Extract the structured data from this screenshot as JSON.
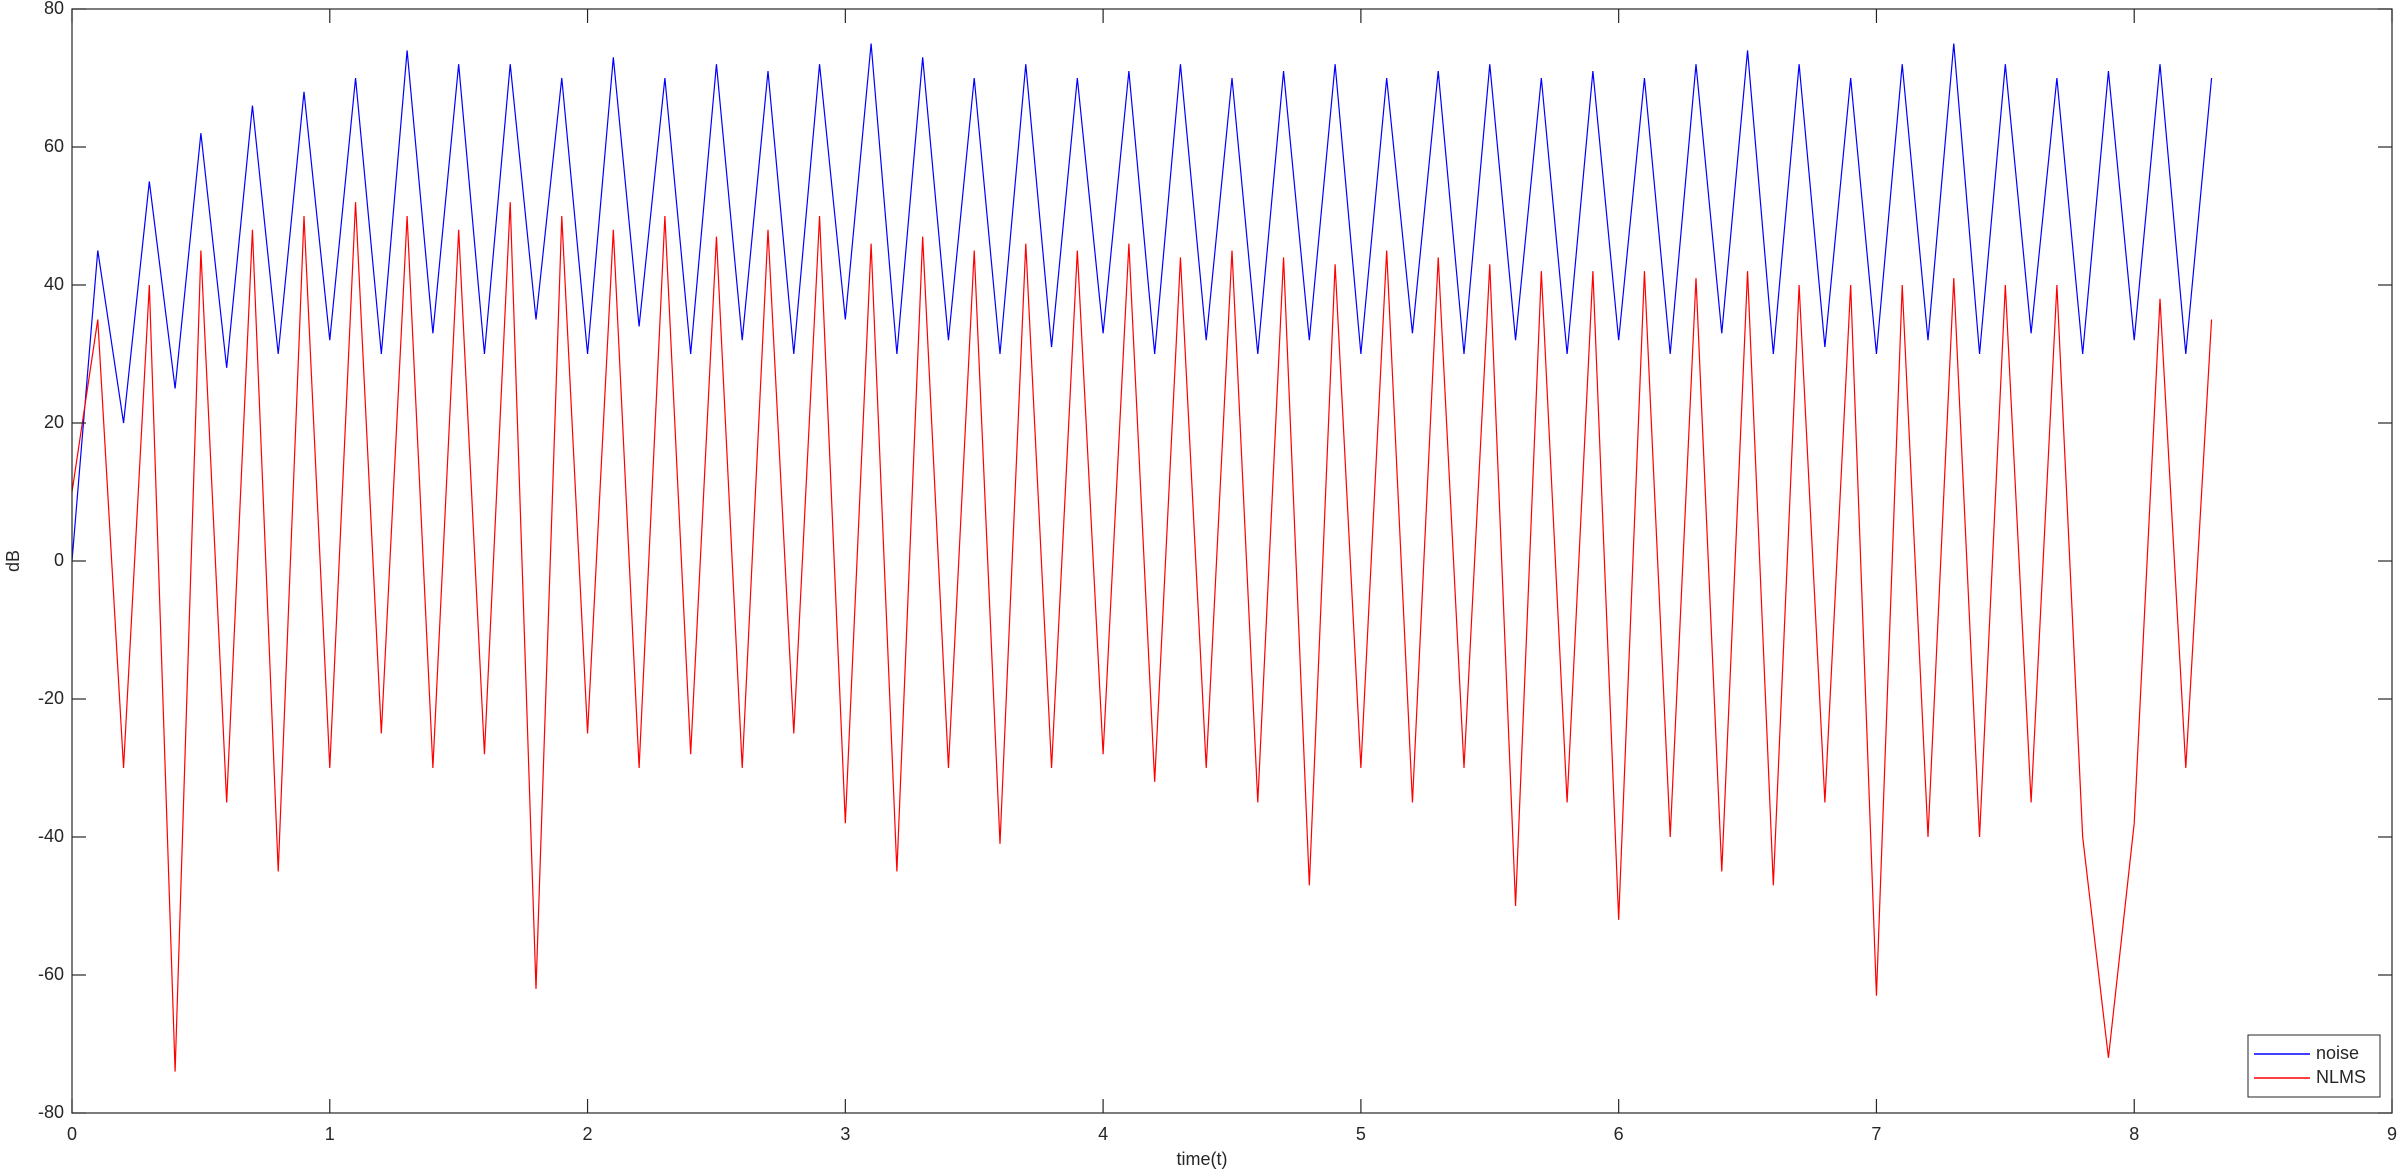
{
  "chart_data": {
    "type": "line",
    "xlabel": "time(t)",
    "ylabel": "dB",
    "x": [
      0,
      0.1,
      0.2,
      0.3,
      0.4,
      0.5,
      0.6,
      0.7,
      0.8,
      0.9,
      1,
      1.1,
      1.2,
      1.3,
      1.4,
      1.5,
      1.6,
      1.7,
      1.8,
      1.9,
      2,
      2.1,
      2.2,
      2.3,
      2.4,
      2.5,
      2.6,
      2.7,
      2.8,
      2.9,
      3,
      3.1,
      3.2,
      3.3,
      3.4,
      3.5,
      3.6,
      3.7,
      3.8,
      3.9,
      4,
      4.1,
      4.2,
      4.3,
      4.4,
      4.5,
      4.6,
      4.7,
      4.8,
      4.9,
      5,
      5.1,
      5.2,
      5.3,
      5.4,
      5.5,
      5.6,
      5.7,
      5.8,
      5.9,
      6,
      6.1,
      6.2,
      6.3,
      6.4,
      6.5,
      6.6,
      6.7,
      6.8,
      6.9,
      7,
      7.1,
      7.2,
      7.3,
      7.4,
      7.5,
      7.6,
      7.7,
      7.8,
      7.9,
      8,
      8.1,
      8.2,
      8.3
    ],
    "series": [
      {
        "name": "noise",
        "color": "#0000ff",
        "values": [
          0,
          45,
          20,
          55,
          25,
          62,
          28,
          66,
          30,
          68,
          32,
          70,
          30,
          74,
          33,
          72,
          30,
          72,
          35,
          70,
          30,
          73,
          34,
          70,
          30,
          72,
          32,
          71,
          30,
          72,
          35,
          75,
          30,
          73,
          32,
          70,
          30,
          72,
          31,
          70,
          33,
          71,
          30,
          72,
          32,
          70,
          30,
          71,
          32,
          72,
          30,
          70,
          33,
          71,
          30,
          72,
          32,
          70,
          30,
          71,
          32,
          70,
          30,
          72,
          33,
          74,
          30,
          72,
          31,
          70,
          30,
          72,
          32,
          75,
          30,
          72,
          33,
          70,
          30,
          71,
          32,
          72,
          30,
          70
        ]
      },
      {
        "name": "NLMS",
        "color": "#ff0000",
        "values": [
          10,
          35,
          -30,
          40,
          -74,
          45,
          -35,
          48,
          -45,
          50,
          -30,
          52,
          -25,
          50,
          -30,
          48,
          -28,
          52,
          -62,
          50,
          -25,
          48,
          -30,
          50,
          -28,
          47,
          -30,
          48,
          -25,
          50,
          -38,
          46,
          -45,
          47,
          -30,
          45,
          -41,
          46,
          -30,
          45,
          -28,
          46,
          -32,
          44,
          -30,
          45,
          -35,
          44,
          -47,
          43,
          -30,
          45,
          -35,
          44,
          -30,
          43,
          -50,
          42,
          -35,
          42,
          -52,
          42,
          -40,
          41,
          -45,
          42,
          -47,
          40,
          -35,
          40,
          -63,
          40,
          -40,
          41,
          -40,
          40,
          -35,
          40,
          -40,
          -72,
          -38,
          38,
          -30,
          35
        ]
      }
    ],
    "xlim": [
      0,
      9
    ],
    "ylim": [
      -80,
      80
    ],
    "xticks": [
      0,
      1,
      2,
      3,
      4,
      5,
      6,
      7,
      8,
      9
    ],
    "yticks": [
      -80,
      -60,
      -40,
      -20,
      0,
      20,
      40,
      60,
      80
    ],
    "grid": false,
    "legend": "southeast"
  }
}
